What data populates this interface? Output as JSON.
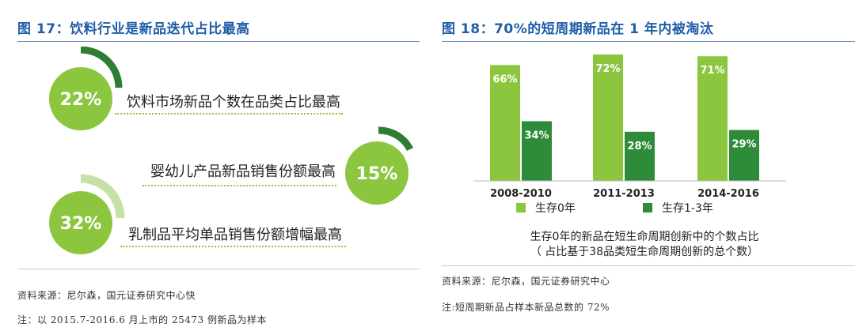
{
  "left": {
    "title": "图 17：饮料行业是新品迭代占比最高",
    "stats": [
      {
        "value": "22%",
        "label": "饮料市场新品个数在品类占比最高",
        "arc_color": "#2e7d32"
      },
      {
        "value": "15%",
        "label": "婴幼儿产品新品销售份额最高",
        "arc_color": "#2e7d32"
      },
      {
        "value": "32%",
        "label": "乳制品平均单品销售份额增幅最高",
        "arc_color": "#c5e1a5"
      }
    ],
    "source": "资料来源：尼尔森，国元证券研究中心快",
    "note": "注：以 2015.7-2016.6 月上市的 25473 例新品为样本"
  },
  "right": {
    "title": "图 18：70%的短周期新品在 1 年内被淘汰",
    "caption_line1": "生存0年的新品在短生命周期创新中的个数占比",
    "caption_line2": "（ 占比基于38品类短生命周期创新的总个数）",
    "source": "资料来源：尼尔森，国元证券研究中心",
    "note": "注:短周期新品占样本新品总数的 72%"
  },
  "chart_data": {
    "type": "bar",
    "categories": [
      "2008-2010",
      "2011-2013",
      "2014-2016"
    ],
    "series": [
      {
        "name": "生存0年",
        "values": [
          66,
          72,
          71
        ],
        "color": "#8cc63f"
      },
      {
        "name": "生存1-3年",
        "values": [
          34,
          28,
          29
        ],
        "color": "#2e8b3a"
      }
    ],
    "data_labels": [
      [
        "66%",
        "72%",
        "71%"
      ],
      [
        "34%",
        "28%",
        "29%"
      ]
    ],
    "ylim": [
      0,
      72
    ],
    "legend_position": "bottom"
  }
}
